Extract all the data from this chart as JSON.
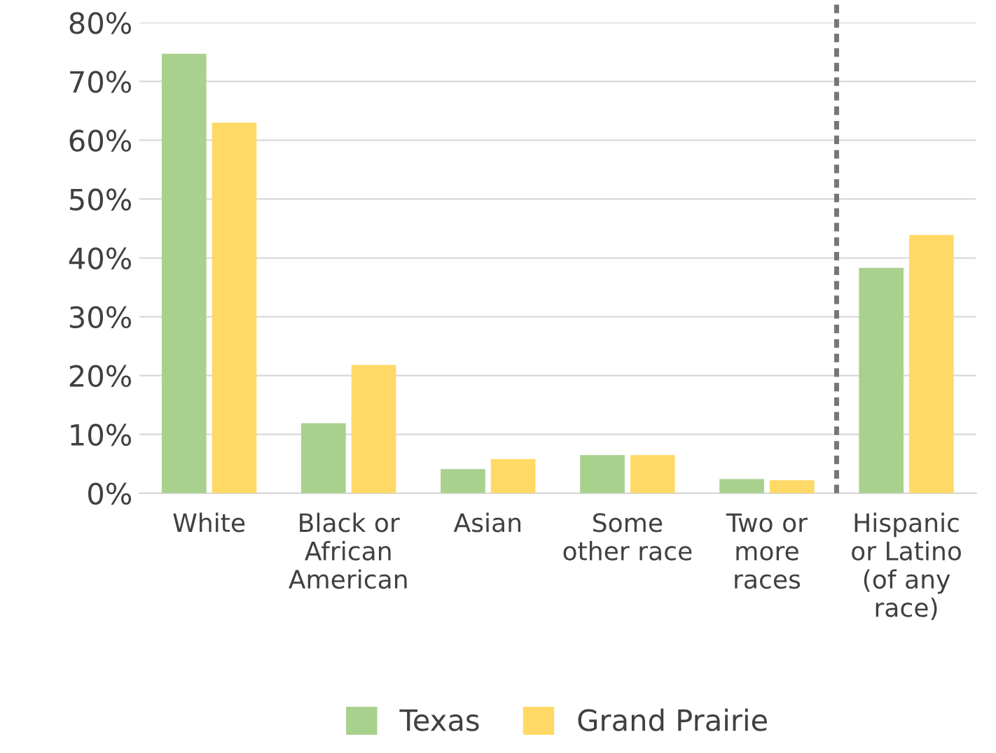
{
  "chart_data": {
    "type": "bar",
    "categories": [
      "White",
      "Black or\nAfrican\nAmerican",
      "Asian",
      "Some\nother race",
      "Two or\nmore\nraces",
      "Hispanic\nor Latino\n(of any\nrace)"
    ],
    "series": [
      {
        "name": "Texas",
        "color": "#a9d18e",
        "values": [
          74.7,
          11.9,
          4.1,
          6.5,
          2.4,
          38.3
        ]
      },
      {
        "name": "Grand Prairie",
        "color": "#ffd966",
        "values": [
          63.0,
          21.8,
          5.8,
          6.5,
          2.2,
          43.9
        ]
      }
    ],
    "ylim": [
      0,
      80
    ],
    "yticks": [
      {
        "value": 0,
        "label": "0%"
      },
      {
        "value": 10,
        "label": "10%"
      },
      {
        "value": 20,
        "label": "20%"
      },
      {
        "value": 30,
        "label": "30%"
      },
      {
        "value": 40,
        "label": "40%"
      },
      {
        "value": 50,
        "label": "50%"
      },
      {
        "value": 60,
        "label": "60%"
      },
      {
        "value": 70,
        "label": "70%"
      },
      {
        "value": 80,
        "label": "80%"
      }
    ],
    "grid": "y",
    "legend": "bottom"
  }
}
